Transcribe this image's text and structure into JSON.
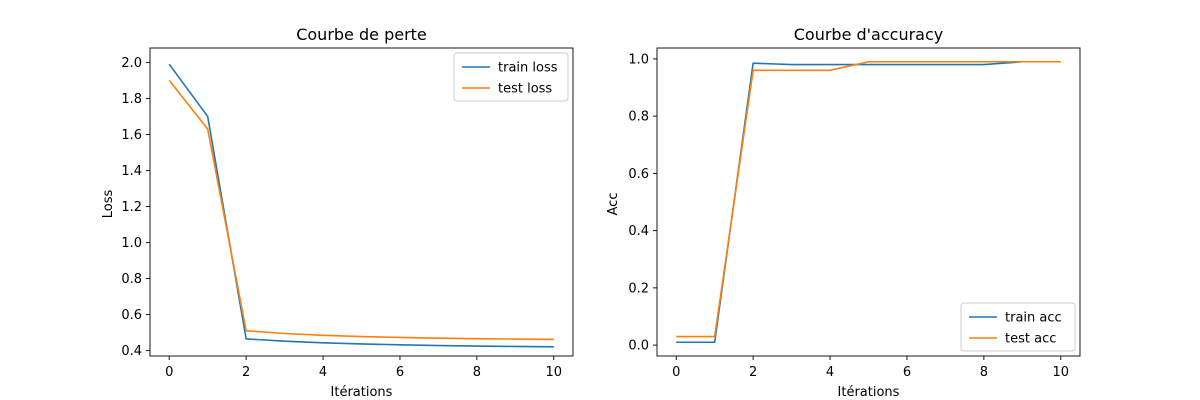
{
  "chart_data": [
    {
      "type": "line",
      "title": "Courbe de perte",
      "xlabel": "Itérations",
      "ylabel": "Loss",
      "xlim": [
        -0.5,
        10.5
      ],
      "ylim": [
        0.37,
        2.08
      ],
      "xticks": [
        0,
        2,
        4,
        6,
        8,
        10
      ],
      "yticks": [
        0.4,
        0.6,
        0.8,
        1.0,
        1.2,
        1.4,
        1.6,
        1.8,
        2.0
      ],
      "ytick_labels": [
        "0.4",
        "0.6",
        "0.8",
        "1.0",
        "1.2",
        "1.4",
        "1.6",
        "1.8",
        "2.0"
      ],
      "legend_position": "upper-right",
      "grid": false,
      "x": [
        0,
        1,
        2,
        3,
        4,
        5,
        6,
        7,
        8,
        9,
        10
      ],
      "series": [
        {
          "name": "train loss",
          "color": "#1f77b4",
          "values": [
            1.99,
            1.7,
            0.465,
            0.452,
            0.443,
            0.437,
            0.432,
            0.428,
            0.425,
            0.423,
            0.421
          ]
        },
        {
          "name": "test loss",
          "color": "#ff7f0e",
          "values": [
            1.9,
            1.63,
            0.51,
            0.495,
            0.485,
            0.478,
            0.473,
            0.469,
            0.466,
            0.464,
            0.462
          ]
        }
      ]
    },
    {
      "type": "line",
      "title": "Courbe d'accuracy",
      "xlabel": "Itérations",
      "ylabel": "Acc",
      "xlim": [
        -0.5,
        10.5
      ],
      "ylim": [
        -0.038,
        1.038
      ],
      "xticks": [
        0,
        2,
        4,
        6,
        8,
        10
      ],
      "yticks": [
        0.0,
        0.2,
        0.4,
        0.6,
        0.8,
        1.0
      ],
      "ytick_labels": [
        "0.0",
        "0.2",
        "0.4",
        "0.6",
        "0.8",
        "1.0"
      ],
      "legend_position": "lower-right",
      "grid": false,
      "x": [
        0,
        1,
        2,
        3,
        4,
        5,
        6,
        7,
        8,
        9,
        10
      ],
      "series": [
        {
          "name": "train acc",
          "color": "#1f77b4",
          "values": [
            0.01,
            0.01,
            0.985,
            0.98,
            0.98,
            0.98,
            0.98,
            0.98,
            0.98,
            0.99,
            0.99
          ]
        },
        {
          "name": "test acc",
          "color": "#ff7f0e",
          "values": [
            0.03,
            0.03,
            0.96,
            0.96,
            0.96,
            0.99,
            0.99,
            0.99,
            0.99,
            0.99,
            0.99
          ]
        }
      ]
    }
  ]
}
